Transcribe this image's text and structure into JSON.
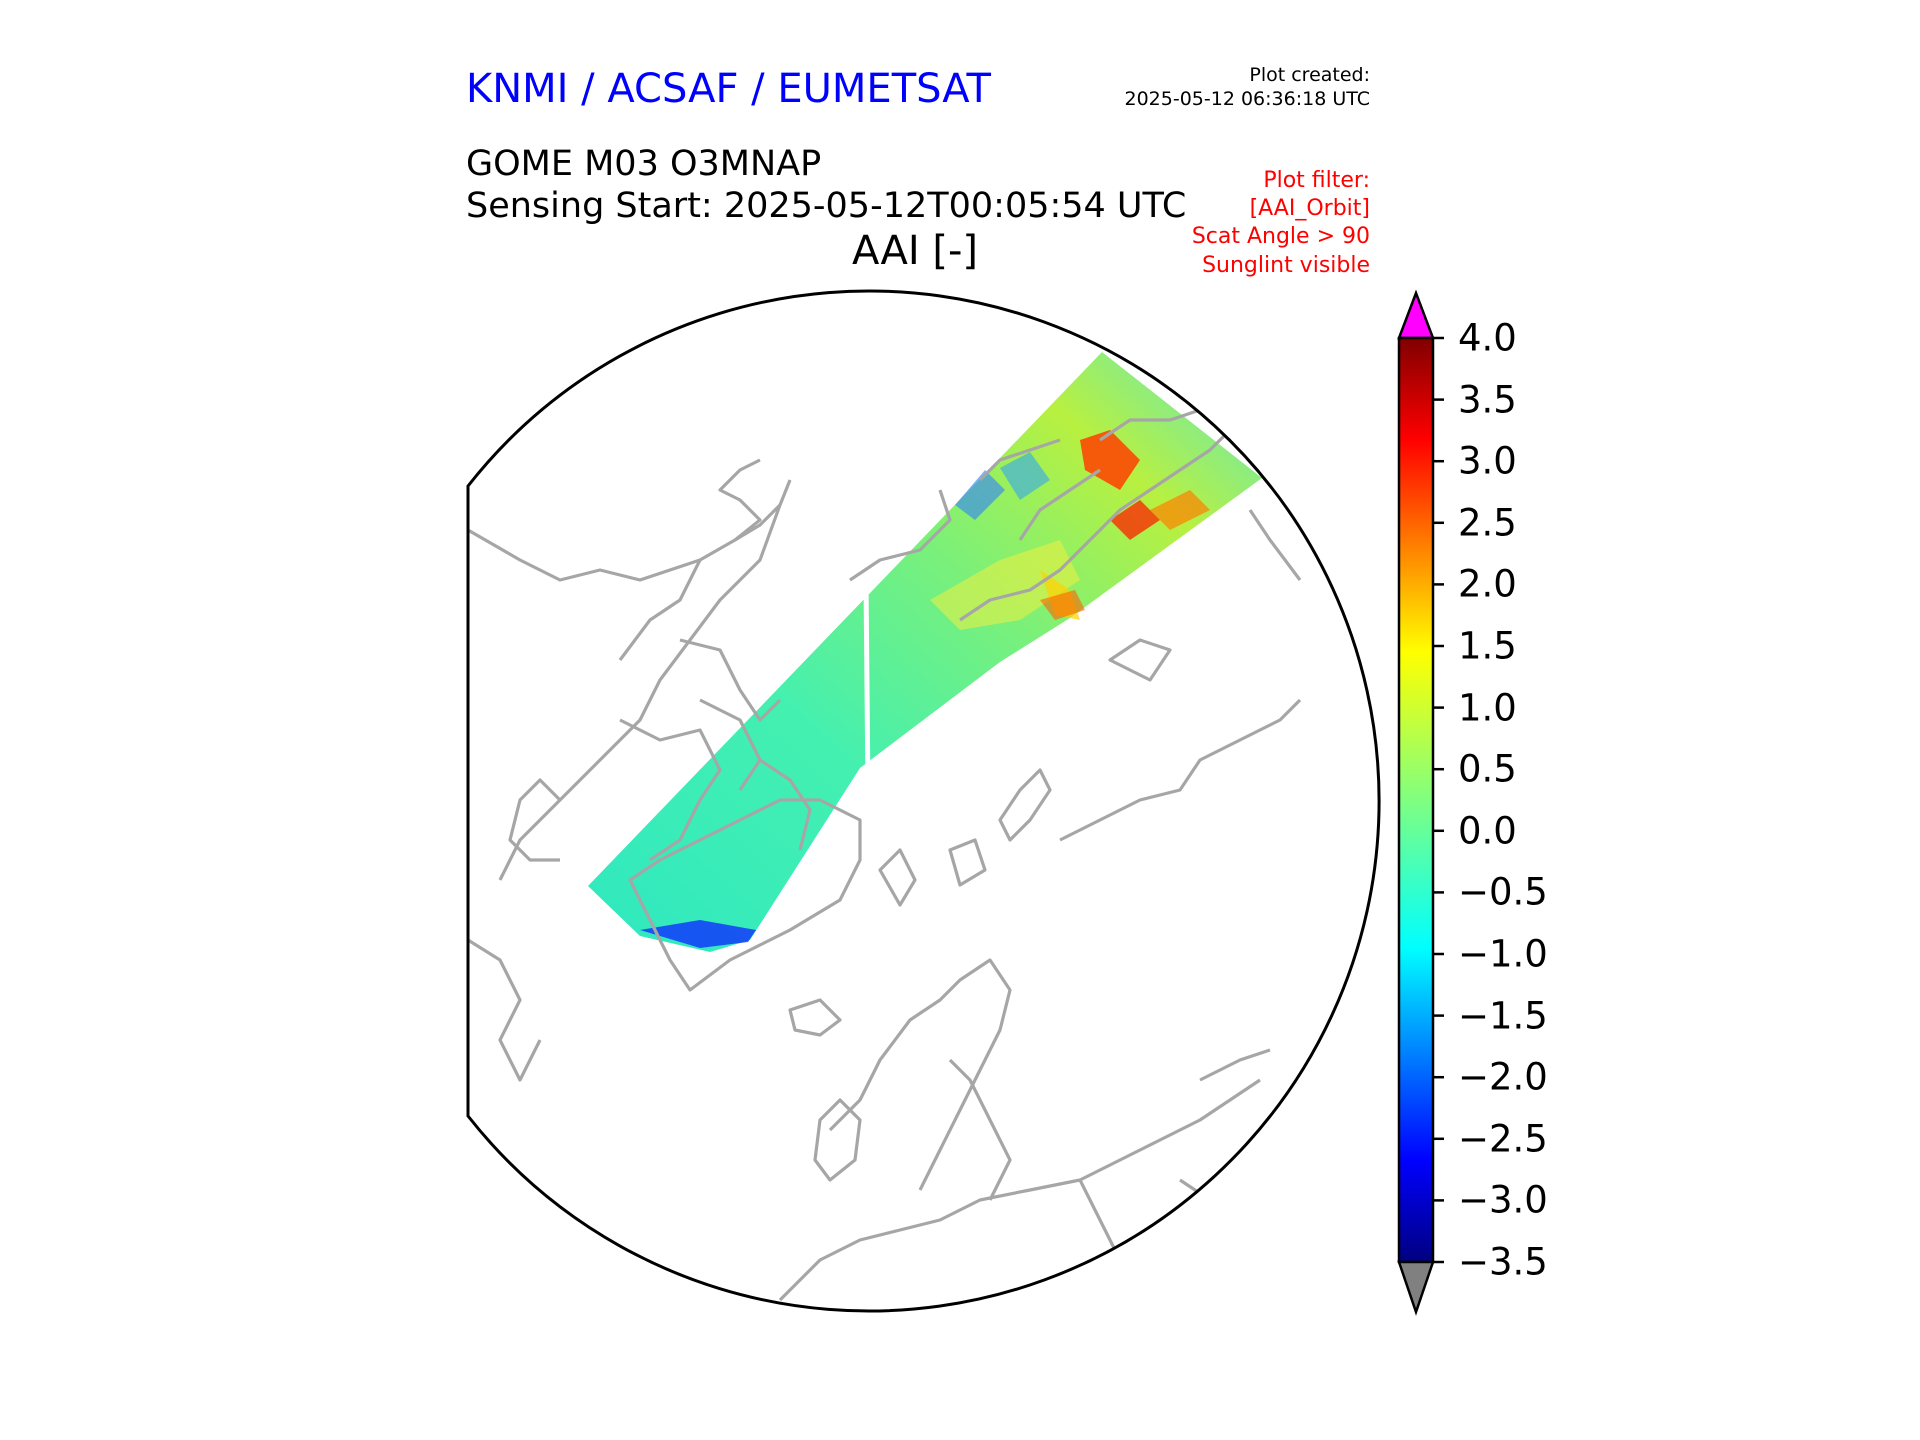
{
  "header": {
    "organization": "KNMI / ACSAF / EUMETSAT",
    "plot_created_label": "Plot created:",
    "plot_created_timestamp": "2025-05-12 06:36:18 UTC",
    "product": "GOME M03 O3MNAP",
    "sensing_start": "Sensing Start: 2025-05-12T00:05:54 UTC",
    "variable": "AAI [-]"
  },
  "filters": [
    "Plot filter:",
    "[AAI_Orbit]",
    "Scat Angle > 90",
    "Sunglint visible"
  ],
  "colorbar": {
    "ticks": [
      "4.0",
      "3.5",
      "3.0",
      "2.5",
      "2.0",
      "1.5",
      "1.0",
      "0.5",
      "0.0",
      "−0.5",
      "−1.0",
      "−1.5",
      "−2.0",
      "−2.5",
      "−3.0",
      "−3.5"
    ],
    "min": -3.5,
    "max": 4.0,
    "over_color": "#ff00ff",
    "under_color": "#808080"
  },
  "colors": {
    "title_blue": "#0000ff",
    "filter_red": "#ff0000",
    "coastline": "#a0a0a0"
  }
}
